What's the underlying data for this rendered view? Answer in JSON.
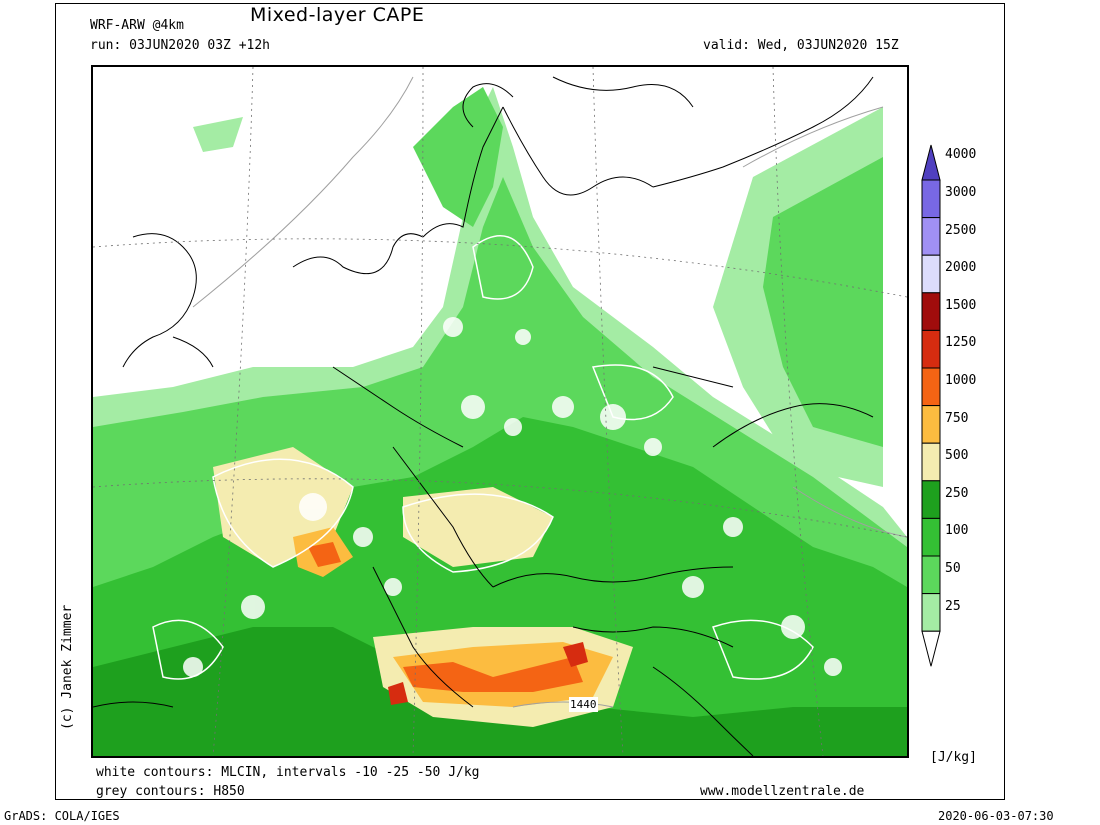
{
  "header": {
    "model": "WRF-ARW @4km",
    "title": "Mixed-layer CAPE",
    "run": "run: 03JUN2020 03Z +12h",
    "valid": "valid: Wed, 03JUN2020 15Z"
  },
  "footer": {
    "line1": "white contours: MLCIN, intervals -10 -25 -50 J/kg",
    "line2": "grey contours: H850",
    "website": "www.modellzentrale.de",
    "software": "GrADS: COLA/IGES",
    "timestamp": "2020-06-03-07:30"
  },
  "credit": "(c) Janek Zimmer",
  "contour_label": "1440",
  "colorbar": {
    "unit": "[J/kg]",
    "levels": [
      "25",
      "50",
      "100",
      "250",
      "500",
      "750",
      "1000",
      "1250",
      "1500",
      "2000",
      "2500",
      "3000",
      "4000"
    ],
    "colors": [
      "#d8f8d8",
      "#a4eca4",
      "#5cd85c",
      "#34c034",
      "#1ea01e",
      "#f4ecb0",
      "#fcbc40",
      "#f46414",
      "#d62c10",
      "#a00c0c",
      "#dcdcfc",
      "#a090f4",
      "#7868e4",
      "#5040c0"
    ]
  }
}
